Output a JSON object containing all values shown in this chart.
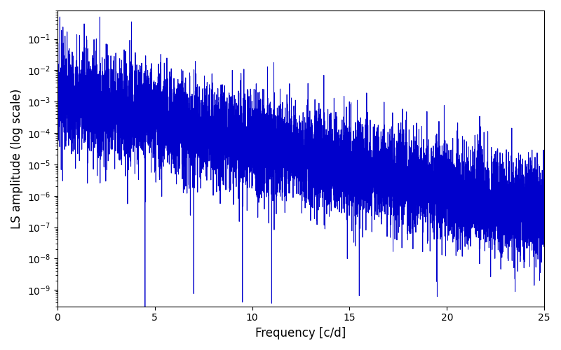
{
  "title": "",
  "xlabel": "Frequency [c/d]",
  "ylabel": "LS amplitude (log scale)",
  "xlim": [
    0,
    25
  ],
  "ylim": [
    3e-10,
    0.8
  ],
  "line_color": "#0000cc",
  "line_width": 0.7,
  "freq_max": 25.0,
  "n_points": 8000,
  "seed": 17,
  "background_color": "#ffffff",
  "figsize": [
    8.0,
    5.0
  ],
  "dpi": 100
}
